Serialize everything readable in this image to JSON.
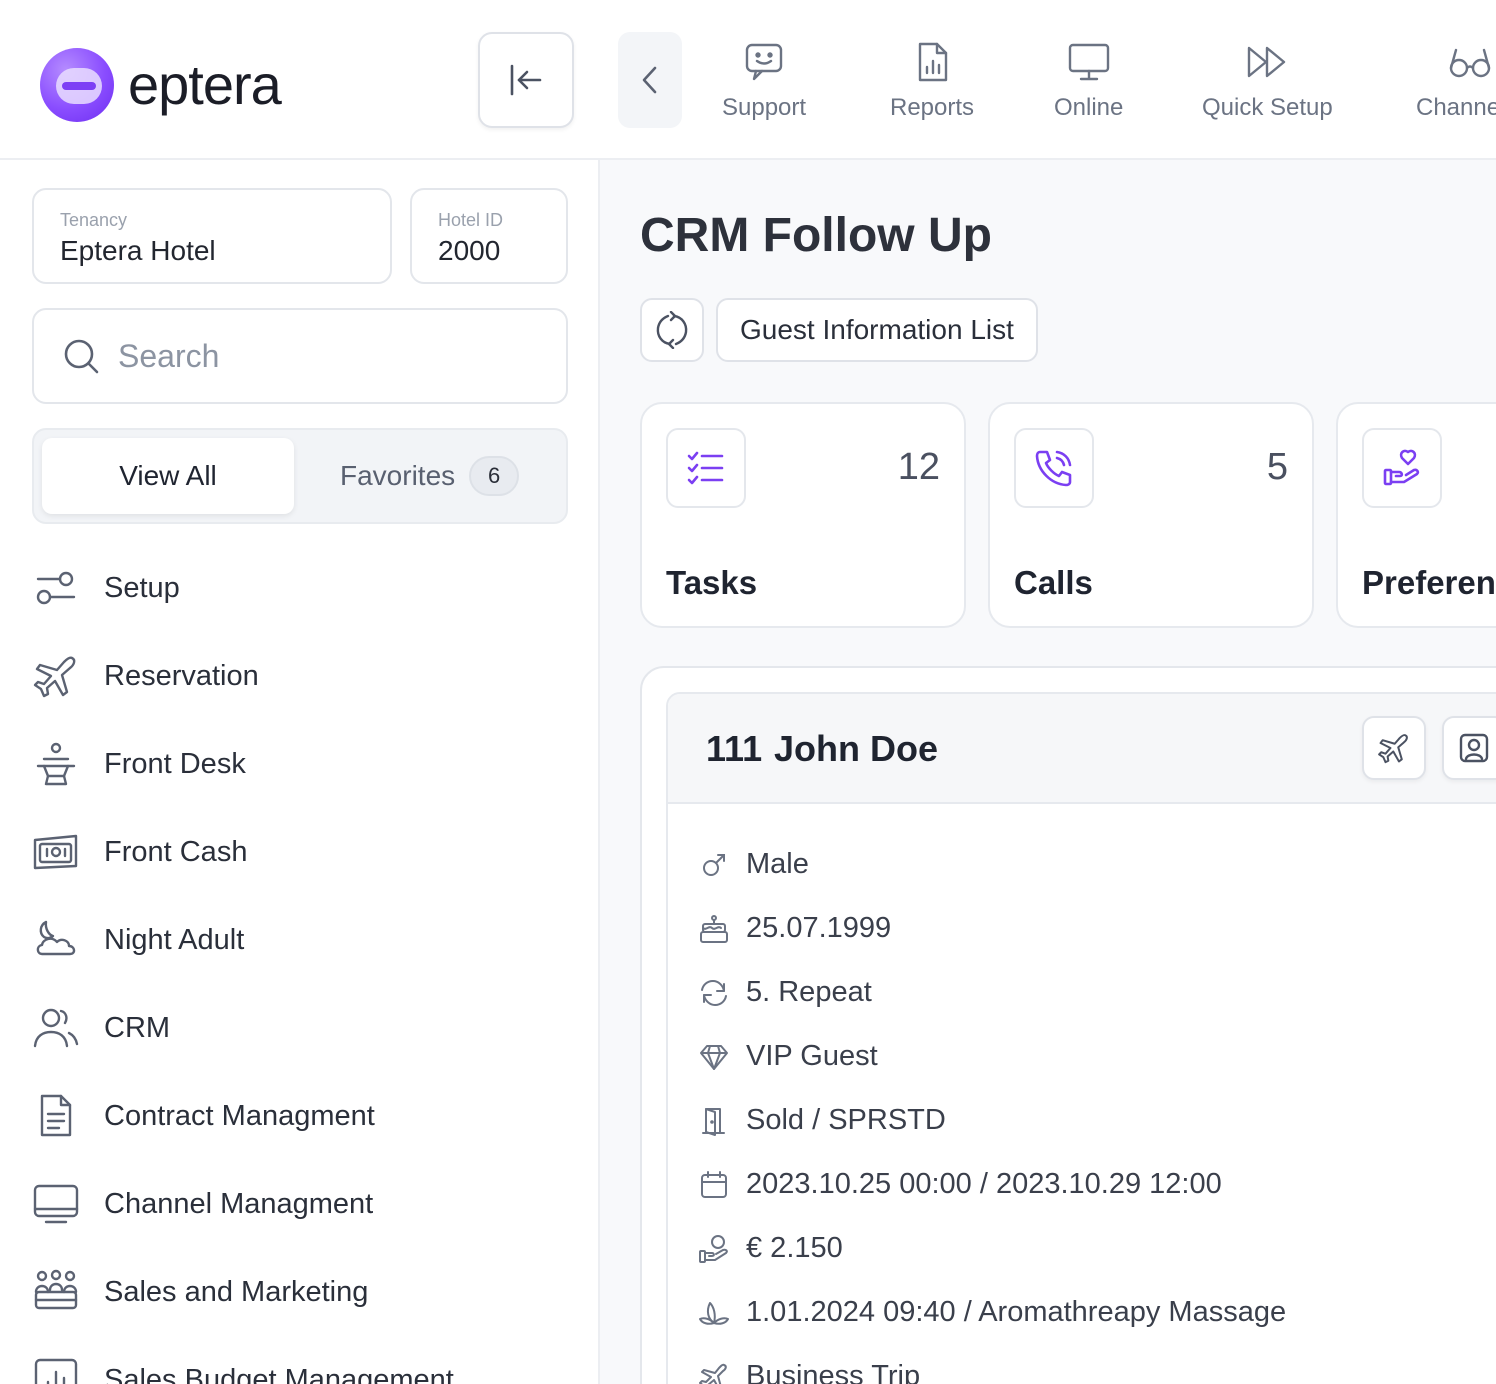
{
  "header": {
    "logo_text": "eptera",
    "nav": [
      {
        "label": "Support",
        "icon": "support-chat-icon"
      },
      {
        "label": "Reports",
        "icon": "reports-icon"
      },
      {
        "label": "Online",
        "icon": "monitor-icon"
      },
      {
        "label": "Quick Setup",
        "icon": "fast-forward-icon"
      },
      {
        "label": "Channe",
        "icon": "glasses-icon"
      }
    ]
  },
  "sidebar": {
    "tenancy": {
      "label": "Tenancy",
      "value": "Eptera Hotel"
    },
    "hotel_id": {
      "label": "Hotel ID",
      "value": "2000"
    },
    "search": {
      "placeholder": "Search"
    },
    "tabs": {
      "view_all": "View All",
      "favorites": "Favorites",
      "favorites_count": "6"
    },
    "items": [
      {
        "label": "Setup",
        "icon": "setup-toggle-icon"
      },
      {
        "label": "Reservation",
        "icon": "airplane-icon"
      },
      {
        "label": "Front Desk",
        "icon": "reception-bell-icon"
      },
      {
        "label": "Front Cash",
        "icon": "cash-icon"
      },
      {
        "label": "Night Adult",
        "icon": "moon-cloud-icon"
      },
      {
        "label": "CRM",
        "icon": "users-icon"
      },
      {
        "label": "Contract Managment",
        "icon": "document-icon"
      },
      {
        "label": "Channel Managment",
        "icon": "desktop-icon"
      },
      {
        "label": "Sales and Marketing",
        "icon": "team-icon"
      },
      {
        "label": "Sales Budget Management",
        "icon": "bar-chart-icon"
      }
    ]
  },
  "main": {
    "title": "CRM Follow Up",
    "list_button": "Guest Information List",
    "stats": [
      {
        "label": "Tasks",
        "count": "12",
        "icon": "task-list-icon"
      },
      {
        "label": "Calls",
        "count": "5",
        "icon": "phone-call-icon"
      },
      {
        "label": "Preferen",
        "count": "",
        "icon": "heart-hand-icon"
      }
    ],
    "guest": {
      "room": "111",
      "name": "John Doe",
      "details": [
        {
          "icon": "male-icon",
          "text": "Male"
        },
        {
          "icon": "birthday-cake-icon",
          "text": "25.07.1999"
        },
        {
          "icon": "repeat-icon",
          "text": "5. Repeat"
        },
        {
          "icon": "diamond-icon",
          "text": "VIP Guest"
        },
        {
          "icon": "door-icon",
          "text": "Sold / SPRSTD"
        },
        {
          "icon": "calendar-icon",
          "text": "2023.10.25 00:00 / 2023.10.29 12:00"
        },
        {
          "icon": "money-hand-icon",
          "text": "€ 2.150"
        },
        {
          "icon": "spa-leaf-icon",
          "text": "1.01.2024 09:40 / Aromathreapy Massage"
        },
        {
          "icon": "briefcase-plane-icon",
          "text": "Business Trip"
        }
      ]
    }
  },
  "colors": {
    "accent": "#7b3ff2",
    "text_muted": "#6b7383",
    "border": "#e3e6eb"
  }
}
